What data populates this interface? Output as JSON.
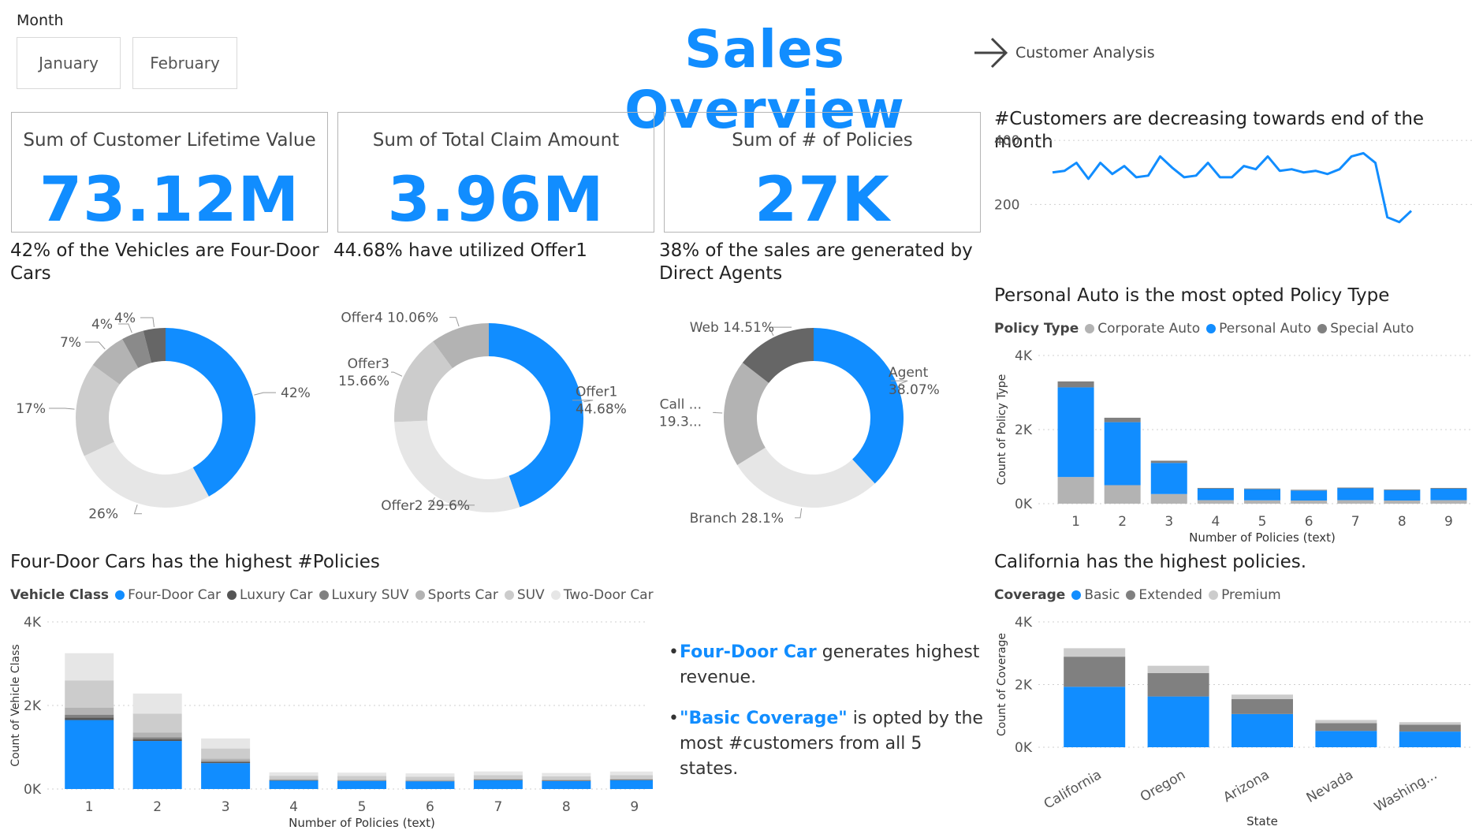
{
  "slicer": {
    "label": "Month",
    "options": [
      "January",
      "February"
    ]
  },
  "header": {
    "title": "Sales Overview",
    "nav_label": "Customer Analysis"
  },
  "kpis": [
    {
      "label": "Sum of Customer Lifetime Value",
      "value": "73.12M"
    },
    {
      "label": "Sum of Total Claim Amount",
      "value": "3.96M"
    },
    {
      "label": "Sum of # of Policies",
      "value": "27K"
    }
  ],
  "insights": {
    "item1_highlight": "Four-Door Car",
    "item1_text": " generates highest revenue.",
    "item2_highlight": "\"Basic Coverage\"",
    "item2_text": " is opted by the most #customers from all 5 states."
  },
  "colors": {
    "blue": "#118dff",
    "dark_gray": "#666666",
    "mid_gray": "#8a8a8a",
    "gray": "#b3b3b3",
    "light_gray": "#cccccc",
    "lighter_gray": "#e6e6e6"
  },
  "chart_data": [
    {
      "id": "donut-vehicle",
      "type": "pie",
      "title": "42% of the Vehicles are Four-Door Cars",
      "slices": [
        {
          "label": "42%",
          "value": 42,
          "color": "#118dff"
        },
        {
          "label": "26%",
          "value": 26,
          "color": "#e6e6e6"
        },
        {
          "label": "17%",
          "value": 17,
          "color": "#cccccc"
        },
        {
          "label": "7%",
          "value": 7,
          "color": "#b3b3b3"
        },
        {
          "label": "4%",
          "value": 4,
          "color": "#8a8a8a"
        },
        {
          "label": "4%",
          "value": 4,
          "color": "#666666"
        }
      ]
    },
    {
      "id": "donut-offer",
      "type": "pie",
      "title": "44.68% have utilized Offer1",
      "slices": [
        {
          "label": "Offer1 44.68%",
          "value": 44.68,
          "color": "#118dff"
        },
        {
          "label": "Offer2 29.6%",
          "value": 29.6,
          "color": "#e6e6e6"
        },
        {
          "label": "Offer3 15.66%",
          "value": 15.66,
          "color": "#cccccc"
        },
        {
          "label": "Offer4 10.06%",
          "value": 10.06,
          "color": "#b3b3b3"
        }
      ]
    },
    {
      "id": "donut-channel",
      "type": "pie",
      "title": "38% of the sales are generated by Direct Agents",
      "slices": [
        {
          "label": "Agent 38.07%",
          "value": 38.07,
          "color": "#118dff"
        },
        {
          "label": "Branch 28.1%",
          "value": 28.1,
          "color": "#e6e6e6"
        },
        {
          "label": "Call ... 19.3...",
          "value": 19.32,
          "color": "#b3b3b3"
        },
        {
          "label": "Web 14.51%",
          "value": 14.51,
          "color": "#666666"
        }
      ]
    },
    {
      "id": "line-customers",
      "type": "line",
      "title": "#Customers are decreasing towards end of the month",
      "yticks": [
        200,
        400
      ],
      "ylim": [
        100,
        420
      ],
      "values": [
        300,
        305,
        330,
        280,
        330,
        295,
        320,
        285,
        290,
        350,
        315,
        285,
        290,
        330,
        285,
        285,
        320,
        310,
        350,
        305,
        310,
        300,
        305,
        295,
        310,
        350,
        360,
        330,
        160,
        145,
        180
      ]
    },
    {
      "id": "bar-policy-type",
      "type": "bar",
      "title": "Personal Auto is the most opted Policy Type",
      "legend_title": "Policy Type",
      "xlabel": "Number of Policies (text)",
      "ylabel": "Count of Policy Type",
      "yticks": [
        "0K",
        "2K",
        "4K"
      ],
      "ylim": [
        0,
        4000
      ],
      "categories": [
        "1",
        "2",
        "3",
        "4",
        "5",
        "6",
        "7",
        "8",
        "9"
      ],
      "series": [
        {
          "name": "Corporate Auto",
          "color": "#b3b3b3",
          "values": [
            720,
            500,
            260,
            95,
            90,
            85,
            95,
            85,
            95
          ]
        },
        {
          "name": "Personal Auto",
          "color": "#118dff",
          "values": [
            2420,
            1700,
            840,
            310,
            300,
            270,
            320,
            280,
            310
          ]
        },
        {
          "name": "Special Auto",
          "color": "#808080",
          "values": [
            160,
            120,
            60,
            20,
            20,
            20,
            20,
            20,
            20
          ]
        }
      ]
    },
    {
      "id": "bar-vehicle-class",
      "type": "bar",
      "title": "Four-Door Cars has the highest #Policies",
      "legend_title": "Vehicle Class",
      "xlabel": "Number of Policies (text)",
      "ylabel": "Count of Vehicle Class",
      "yticks": [
        "0K",
        "2K",
        "4K"
      ],
      "ylim": [
        0,
        4000
      ],
      "categories": [
        "1",
        "2",
        "3",
        "4",
        "5",
        "6",
        "7",
        "8",
        "9"
      ],
      "series": [
        {
          "name": "Four-Door Car",
          "color": "#118dff",
          "values": [
            1650,
            1150,
            620,
            200,
            195,
            185,
            210,
            190,
            210
          ]
        },
        {
          "name": "Luxury Car",
          "color": "#555555",
          "values": [
            60,
            40,
            25,
            8,
            8,
            8,
            8,
            8,
            8
          ]
        },
        {
          "name": "Luxury SUV",
          "color": "#808080",
          "values": [
            70,
            45,
            25,
            8,
            8,
            8,
            8,
            8,
            8
          ]
        },
        {
          "name": "Sports Car",
          "color": "#b3b3b3",
          "values": [
            170,
            120,
            60,
            22,
            22,
            20,
            22,
            20,
            22
          ]
        },
        {
          "name": "SUV",
          "color": "#cccccc",
          "values": [
            650,
            450,
            240,
            80,
            78,
            75,
            85,
            78,
            85
          ]
        },
        {
          "name": "Two-Door Car",
          "color": "#e6e6e6",
          "values": [
            650,
            480,
            240,
            82,
            80,
            78,
            88,
            80,
            85
          ]
        }
      ]
    },
    {
      "id": "bar-coverage",
      "type": "bar",
      "title": "California has the highest policies.",
      "legend_title": "Coverage",
      "xlabel": "State",
      "ylabel": "Count of Coverage",
      "yticks": [
        "0K",
        "2K",
        "4K"
      ],
      "ylim": [
        0,
        4000
      ],
      "categories": [
        "California",
        "Oregon",
        "Arizona",
        "Nevada",
        "Washing..."
      ],
      "series": [
        {
          "name": "Basic",
          "color": "#118dff",
          "values": [
            1930,
            1620,
            1060,
            520,
            500
          ]
        },
        {
          "name": "Extended",
          "color": "#808080",
          "values": [
            960,
            750,
            480,
            250,
            220
          ]
        },
        {
          "name": "Premium",
          "color": "#cccccc",
          "values": [
            270,
            230,
            140,
            100,
            80
          ]
        }
      ]
    }
  ]
}
